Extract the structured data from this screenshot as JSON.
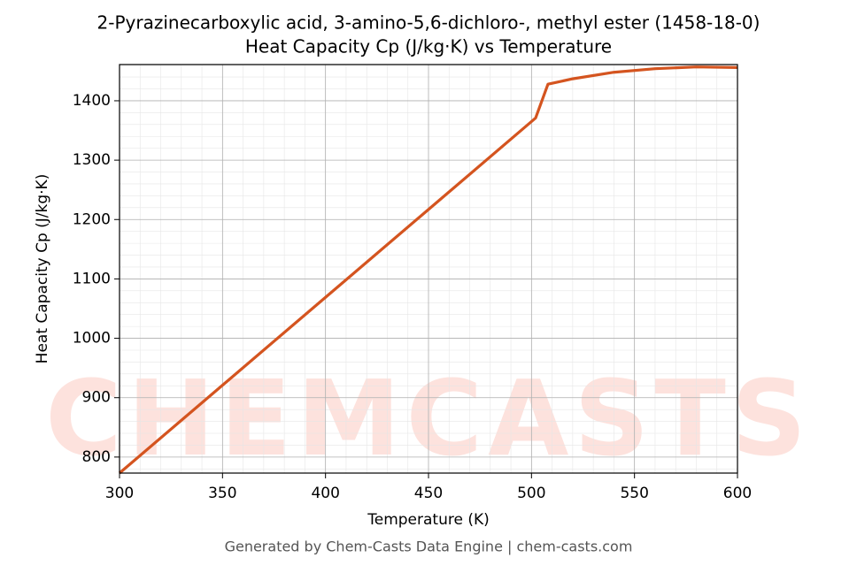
{
  "chart_data": {
    "type": "line",
    "title": "2-Pyrazinecarboxylic acid, 3-amino-5,6-dichloro-, methyl ester (1458-18-0)",
    "subtitle": "Heat Capacity Cp (J/kg·K) vs Temperature",
    "xlabel": "Temperature (K)",
    "ylabel": "Heat Capacity Cp (J/kg·K)",
    "footer": "Generated by Chem-Casts Data Engine | chem-casts.com",
    "watermark": "CHEMCASTS",
    "x": [
      300,
      350,
      400,
      450,
      500,
      502,
      508,
      520,
      540,
      560,
      580,
      600
    ],
    "series": [
      {
        "name": "Cp",
        "color": "#d4541f",
        "values": [
          773,
          921,
          1069,
          1217,
          1365,
          1371,
          1428,
          1437,
          1448,
          1454,
          1457,
          1456
        ]
      }
    ],
    "xlim": [
      300,
      600
    ],
    "xticks": [
      300,
      350,
      400,
      450,
      500,
      550,
      600
    ],
    "ylim": [
      773,
      1461
    ],
    "yticks": [
      800,
      900,
      1000,
      1100,
      1200,
      1300,
      1400
    ],
    "grid": true,
    "minor_grid": true
  }
}
